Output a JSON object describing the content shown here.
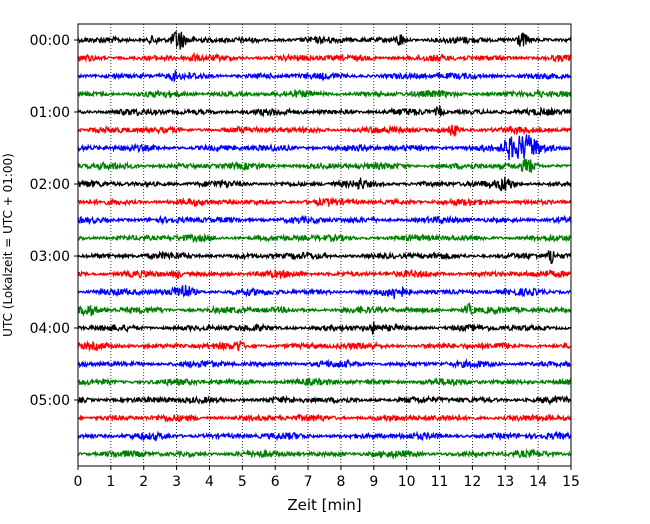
{
  "chart_data": {
    "type": "line",
    "title": "",
    "xlabel": "Zeit  [min]",
    "ylabel": "UTC (Lokalzeit = UTC + 01:00)",
    "xlim": [
      0,
      15
    ],
    "x_ticks": [
      0,
      1,
      2,
      3,
      4,
      5,
      6,
      7,
      8,
      9,
      10,
      11,
      12,
      13,
      14,
      15
    ],
    "x_tick_labels": [
      "0",
      "1",
      "2",
      "3",
      "4",
      "5",
      "6",
      "7",
      "8",
      "9",
      "10",
      "11",
      "12",
      "13",
      "14",
      "15"
    ],
    "y_tick_labels": [
      "00:00",
      "01:00",
      "02:00",
      "03:00",
      "04:00",
      "05:00"
    ],
    "traces_per_label": 4,
    "trace_count": 24,
    "trace_interval_minutes": 15,
    "grid": "vertical dotted at each minute",
    "trace_colors": [
      "#000000",
      "#ff0000",
      "#0000ff",
      "#008000"
    ]
  }
}
